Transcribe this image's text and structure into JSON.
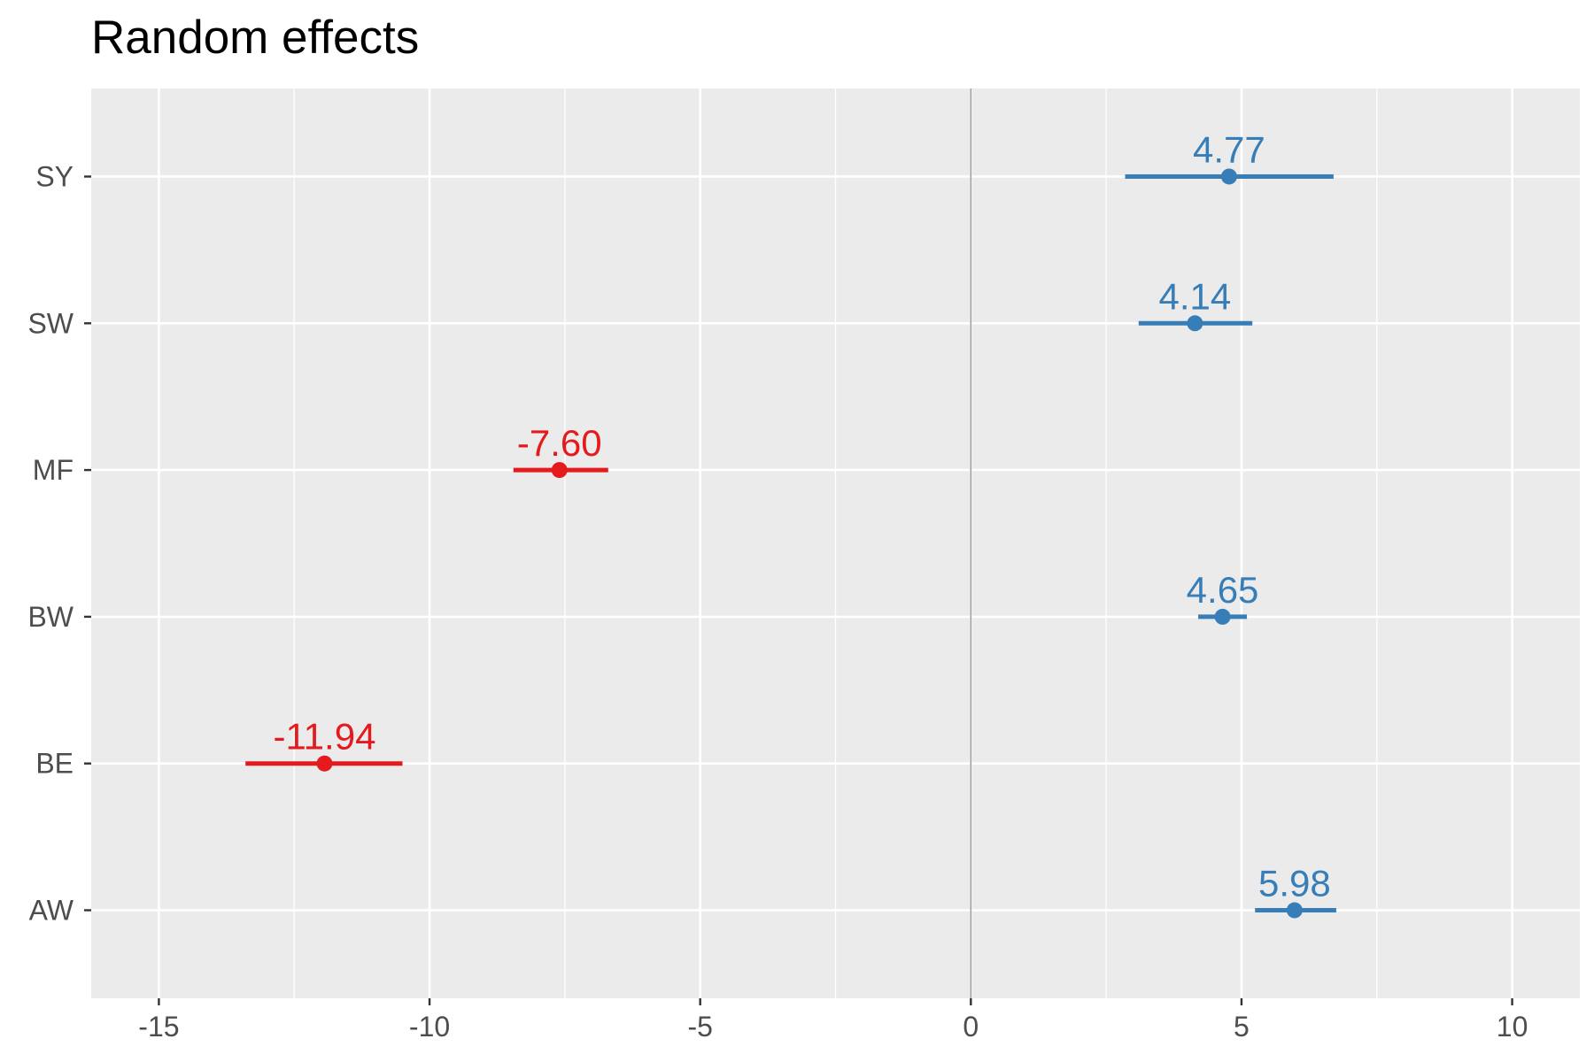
{
  "chart_data": {
    "type": "forest",
    "title": "Random effects",
    "xlabel": "",
    "ylabel": "",
    "xlim": [
      -16.25,
      11.25
    ],
    "x_ticks": [
      -15,
      -10,
      -5,
      0,
      5,
      10
    ],
    "x_tick_labels": [
      "-15",
      "-10",
      "-5",
      "0",
      "5",
      "10"
    ],
    "reference_line": 0,
    "grid": true,
    "legend": "none",
    "categories": [
      "SY",
      "SW",
      "MF",
      "BW",
      "BE",
      "AW"
    ],
    "estimates": [
      4.77,
      4.14,
      -7.6,
      4.65,
      -11.94,
      5.98
    ],
    "ci_lower": [
      2.85,
      3.1,
      -8.45,
      4.2,
      -13.4,
      5.25
    ],
    "ci_upper": [
      6.7,
      5.2,
      -6.7,
      5.1,
      -10.5,
      6.75
    ],
    "value_labels": [
      "4.77",
      "4.14",
      "-7.60",
      "4.65",
      "-11.94",
      "5.98"
    ],
    "colors": {
      "positive": "#377eb8",
      "negative": "#e41a1c",
      "panel_background": "#ebebeb",
      "grid": "#ffffff",
      "reference_line": "#9a9a9a",
      "axis_text": "#4d4d4d"
    }
  }
}
